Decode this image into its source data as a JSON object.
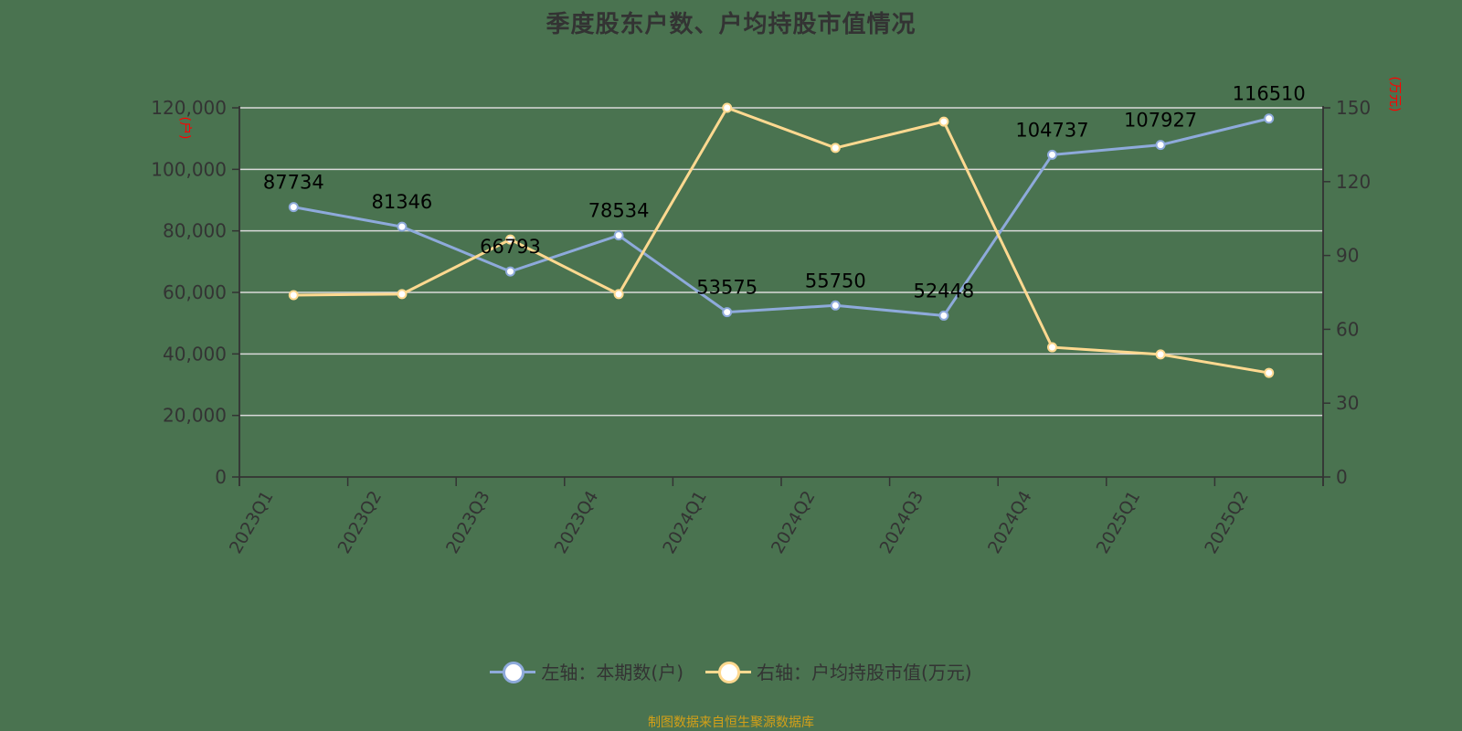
{
  "title": "季度股东户数、户均持股市值情况",
  "footer": "制图数据来自恒生聚源数据库",
  "colors": {
    "background": "#4a7350",
    "series_left": "#8eaadb",
    "series_right": "#ffd990",
    "grid": "#d9d9d9",
    "axis": "#333333",
    "axis_unit": "#ff0000",
    "footer": "#d4a017"
  },
  "axes": {
    "left_unit": "(户)",
    "right_unit": "(万元)",
    "left_ticks": [
      "0",
      "20,000",
      "40,000",
      "60,000",
      "80,000",
      "100,000",
      "120,000"
    ],
    "right_ticks": [
      "0",
      "30",
      "60",
      "90",
      "120",
      "150"
    ]
  },
  "legend": {
    "items": [
      {
        "label": "左轴：本期数(户)",
        "color": "#8eaadb"
      },
      {
        "label": "右轴：户均持股市值(万元)",
        "color": "#ffd990"
      }
    ]
  },
  "chart_data": {
    "type": "line",
    "title": "季度股东户数、户均持股市值情况",
    "categories": [
      "2023Q1",
      "2023Q2",
      "2023Q3",
      "2023Q4",
      "2024Q1",
      "2024Q2",
      "2024Q3",
      "2024Q4",
      "2025Q1",
      "2025Q2"
    ],
    "series": [
      {
        "name": "左轴：本期数(户)",
        "axis": "left",
        "values": [
          87734,
          81346,
          66793,
          78534,
          53575,
          55750,
          52448,
          104737,
          107927,
          116510
        ],
        "data_labels": true
      },
      {
        "name": "右轴：户均持股市值(万元)",
        "axis": "right",
        "values": [
          73.9,
          74.3,
          96.5,
          74.3,
          150.0,
          133.7,
          144.4,
          52.7,
          49.8,
          42.3
        ],
        "data_labels": false
      }
    ],
    "xlabel": "",
    "ylabel_left": "(户)",
    "ylabel_right": "(万元)",
    "ylim_left": [
      0,
      120000
    ],
    "ylim_right": [
      0,
      150
    ],
    "left_ticks": [
      0,
      20000,
      40000,
      60000,
      80000,
      100000,
      120000
    ],
    "right_ticks": [
      0,
      30,
      60,
      90,
      120,
      150
    ],
    "grid": true,
    "legend_position": "bottom"
  }
}
